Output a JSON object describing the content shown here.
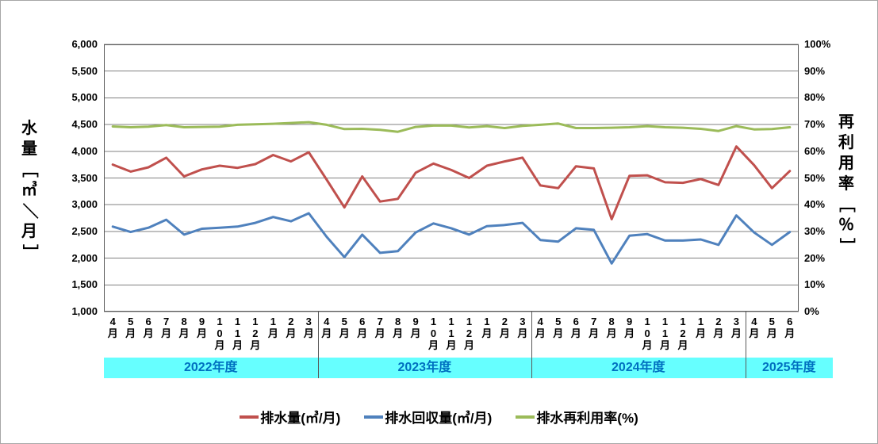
{
  "figure": {
    "background": "#ffffff",
    "border_color": "#a6a6a6",
    "gridline_color": "#808080",
    "frame_color": "#595959"
  },
  "chart_data": {
    "type": "line",
    "title": "",
    "grid": true,
    "legend_position": "bottom",
    "left_axis": {
      "label": "水量［㎥／月］",
      "min": 1000,
      "max": 6000,
      "step": 500,
      "ticks": [
        "6,000",
        "5,500",
        "5,000",
        "4,500",
        "4,000",
        "3,500",
        "3,000",
        "2,500",
        "2,000",
        "1,500",
        "1,000"
      ]
    },
    "right_axis": {
      "label": "再利用率［％］",
      "min": 0,
      "max": 100,
      "step": 10,
      "ticks": [
        "100%",
        "90%",
        "80%",
        "70%",
        "60%",
        "50%",
        "40%",
        "30%",
        "20%",
        "10%",
        "0%"
      ]
    },
    "x_axis": {
      "groups": [
        {
          "label": "2022年度",
          "months": [
            "4月",
            "5月",
            "6月",
            "7月",
            "8月",
            "9月",
            "10月",
            "11月",
            "12月",
            "1月",
            "2月",
            "3月"
          ]
        },
        {
          "label": "2023年度",
          "months": [
            "4月",
            "5月",
            "6月",
            "7月",
            "8月",
            "9月",
            "10月",
            "11月",
            "12月",
            "1月",
            "2月",
            "3月"
          ]
        },
        {
          "label": "2024年度",
          "months": [
            "4月",
            "5月",
            "6月",
            "7月",
            "8月",
            "9月",
            "10月",
            "11月",
            "12月",
            "1月",
            "2月",
            "3月"
          ]
        },
        {
          "label": "2025年度",
          "months": [
            "4月",
            "5月",
            "6月"
          ]
        }
      ]
    },
    "series": [
      {
        "id": "drainage-volume",
        "name": "排水量(㎥/月)",
        "axis": "left",
        "color": "#C0504D",
        "values": [
          3750,
          3620,
          3700,
          3880,
          3530,
          3660,
          3730,
          3690,
          3760,
          3930,
          3810,
          3980,
          3470,
          2950,
          3530,
          3060,
          3110,
          3600,
          3770,
          3650,
          3500,
          3730,
          3810,
          3880,
          3360,
          3310,
          3720,
          3680,
          2730,
          3540,
          3550,
          3420,
          3410,
          3480,
          3370,
          4090,
          3740,
          3310,
          3630
        ]
      },
      {
        "id": "recovery-volume",
        "name": "排水回収量(㎥/月)",
        "axis": "left",
        "color": "#4F81BD",
        "values": [
          2590,
          2490,
          2570,
          2720,
          2440,
          2550,
          2570,
          2590,
          2660,
          2770,
          2690,
          2840,
          2400,
          2020,
          2440,
          2100,
          2130,
          2480,
          2650,
          2560,
          2440,
          2600,
          2620,
          2660,
          2340,
          2310,
          2560,
          2530,
          1900,
          2420,
          2450,
          2330,
          2330,
          2350,
          2250,
          2800,
          2480,
          2250,
          2490
        ]
      },
      {
        "id": "reuse-rate",
        "name": "排水再利用率(%)",
        "axis": "right",
        "color": "#9BBB59",
        "values": [
          69.3,
          69.0,
          69.2,
          69.8,
          69.0,
          69.1,
          69.2,
          69.9,
          70.1,
          70.3,
          70.6,
          70.9,
          69.9,
          68.3,
          68.4,
          68.0,
          67.3,
          69.1,
          69.6,
          69.6,
          68.9,
          69.4,
          68.7,
          69.5,
          69.9,
          70.4,
          68.7,
          68.7,
          68.8,
          69.0,
          69.4,
          69.0,
          68.8,
          68.4,
          67.6,
          69.4,
          68.2,
          68.3,
          69.0
        ]
      }
    ]
  },
  "fiscal_band": {
    "background": "#66FFFF",
    "text_color": "#0070C0"
  }
}
